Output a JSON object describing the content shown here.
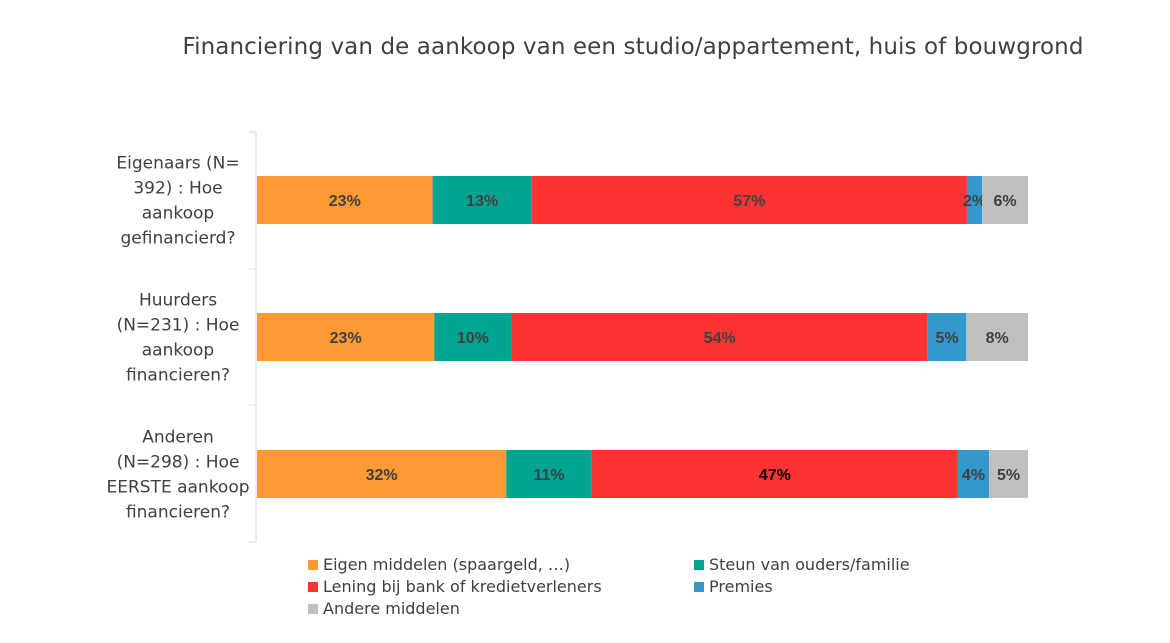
{
  "chart_data": {
    "type": "bar",
    "orientation": "horizontal",
    "stacked": true,
    "percent": true,
    "title": "Financiering van de aankoop van een studio/appartement, huis of bouwgrond",
    "categories": [
      "Eigenaars (N= 392) : Hoe aankoop gefinancierd?",
      "Huurders (N=231) : Hoe aankoop financieren?",
      "Anderen (N=298) : Hoe EERSTE aankoop financieren?"
    ],
    "category_lines": [
      [
        "Eigenaars (N=",
        "392) : Hoe",
        "aankoop",
        "gefinancierd?"
      ],
      [
        "Huurders",
        "(N=231) : Hoe",
        "aankoop",
        "financieren?"
      ],
      [
        "Anderen",
        "(N=298) : Hoe",
        "EERSTE aankoop",
        "financieren?"
      ]
    ],
    "series": [
      {
        "name": "Eigen middelen (spaargeld, …)",
        "color": "#FF9933",
        "values": [
          23,
          23,
          32
        ]
      },
      {
        "name": "Steun van ouders/familie",
        "color": "#00A591",
        "values": [
          13,
          10,
          11
        ]
      },
      {
        "name": "Lening bij bank of kredietverleners",
        "color": "#FF3333",
        "values": [
          57,
          54,
          47
        ]
      },
      {
        "name": "Premies",
        "color": "#3399CC",
        "values": [
          2,
          5,
          4
        ]
      },
      {
        "name": "Andere middelen",
        "color": "#C0C0C0",
        "values": [
          6,
          8,
          5
        ]
      }
    ],
    "data_labels": [
      [
        "23%",
        "13%",
        "57%",
        "2%",
        "6%"
      ],
      [
        "23%",
        "10%",
        "54%",
        "5%",
        "8%"
      ],
      [
        "32%",
        "11%",
        "47%",
        "4%",
        "5%"
      ]
    ],
    "label_colors": [
      [
        "#404040",
        "#404040",
        "#404040",
        "#404040",
        "#404040"
      ],
      [
        "#404040",
        "#404040",
        "#404040",
        "#404040",
        "#404040"
      ],
      [
        "#404040",
        "#404040",
        "#000000",
        "#404040",
        "#404040"
      ]
    ],
    "xlim": [
      0,
      100
    ],
    "legend": {
      "position": "bottom",
      "order": [
        0,
        1,
        2,
        3,
        4
      ]
    },
    "grid": false
  }
}
